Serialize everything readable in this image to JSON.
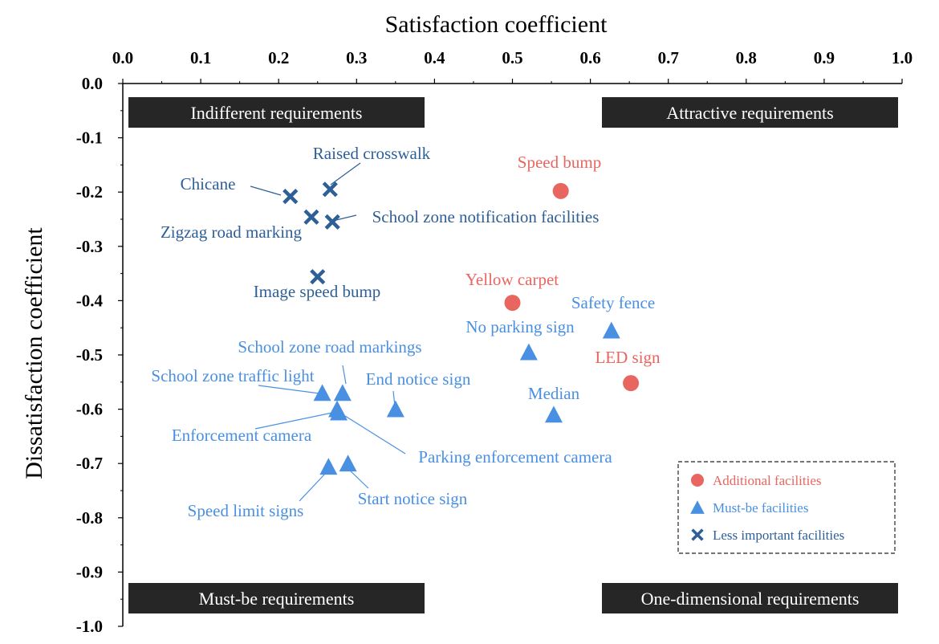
{
  "chart_data": {
    "type": "scatter",
    "xlabel": "Satisfaction coefficient",
    "ylabel": "Dissatisfaction coefficient",
    "xlim": [
      0.0,
      1.0
    ],
    "ylim": [
      -1.0,
      0.0
    ],
    "x_ticks": [
      "0.0",
      "0.1",
      "0.2",
      "0.3",
      "0.4",
      "0.5",
      "0.6",
      "0.7",
      "0.8",
      "0.9",
      "1.0"
    ],
    "y_ticks": [
      "0.0",
      "-0.1",
      "-0.2",
      "-0.3",
      "-0.4",
      "-0.5",
      "-0.6",
      "-0.7",
      "-0.8",
      "-0.9",
      "-1.0"
    ],
    "x_axis_position": "top",
    "grid": false,
    "legend_position": "bottom-right",
    "quadrants": [
      {
        "label": "Indifferent requirements",
        "position": "top-left"
      },
      {
        "label": "Attractive requirements",
        "position": "top-right"
      },
      {
        "label": "Must-be requirements",
        "position": "bottom-left"
      },
      {
        "label": "One-dimensional requirements",
        "position": "bottom-right"
      }
    ],
    "series": [
      {
        "name": "Additional facilities",
        "marker": "circle",
        "color": "#e8665f",
        "points": [
          {
            "label": "Speed bump",
            "x": 0.562,
            "y": -0.198
          },
          {
            "label": "Yellow carpet",
            "x": 0.5,
            "y": -0.404
          },
          {
            "label": "LED sign",
            "x": 0.652,
            "y": -0.552
          }
        ]
      },
      {
        "name": "Must-be facilities",
        "marker": "triangle",
        "color": "#4a90e2",
        "points": [
          {
            "label": "Safety fence",
            "x": 0.627,
            "y": -0.455
          },
          {
            "label": "No parking sign",
            "x": 0.521,
            "y": -0.495
          },
          {
            "label": "Median",
            "x": 0.553,
            "y": -0.61
          },
          {
            "label": "School zone road markings",
            "x": 0.282,
            "y": -0.57
          },
          {
            "label": "School zone traffic light",
            "x": 0.256,
            "y": -0.57
          },
          {
            "label": "End notice sign",
            "x": 0.35,
            "y": -0.6
          },
          {
            "label": "Enforcement camera",
            "x": 0.275,
            "y": -0.6
          },
          {
            "label": "Parking enforcement camera",
            "x": 0.277,
            "y": -0.606
          },
          {
            "label": "Speed limit signs",
            "x": 0.264,
            "y": -0.706
          },
          {
            "label": "Start notice sign",
            "x": 0.289,
            "y": -0.7
          }
        ]
      },
      {
        "name": "Less important facilities",
        "marker": "cross",
        "color": "#2e5f96",
        "points": [
          {
            "label": "Raised crosswalk",
            "x": 0.266,
            "y": -0.195
          },
          {
            "label": "Chicane",
            "x": 0.215,
            "y": -0.208
          },
          {
            "label": "Zigzag road marking",
            "x": 0.242,
            "y": -0.246
          },
          {
            "label": "School zone notification facilities",
            "x": 0.269,
            "y": -0.255
          },
          {
            "label": "Image speed bump",
            "x": 0.25,
            "y": -0.356
          }
        ]
      }
    ]
  }
}
